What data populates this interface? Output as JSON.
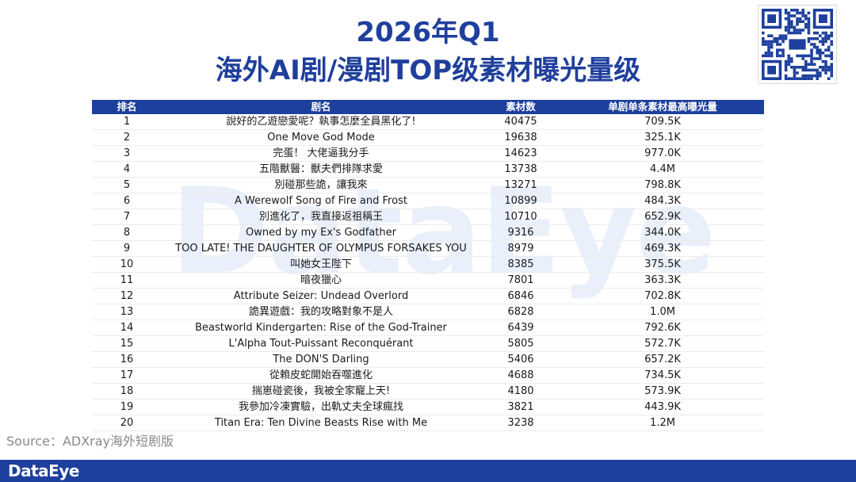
{
  "watermark_text": "DataEye",
  "title_line1": "2026年Q1",
  "title_line2": "海外AI剧/漫剧TOP级素材曝光量级",
  "table": {
    "headers": [
      "排名",
      "剧名",
      "素材数",
      "单剧单条素材最高曝光量"
    ],
    "rows": [
      [
        "1",
        "說好的乙遊戀愛呢？執事怎麼全員黑化了!",
        "40475",
        "709.5K"
      ],
      [
        "2",
        "One Move God Mode",
        "19638",
        "325.1K"
      ],
      [
        "3",
        "完蛋！ 大佬逼我分手",
        "14623",
        "977.0K"
      ],
      [
        "4",
        "五階獸醫：獸夫們排隊求愛",
        "13738",
        "4.4M"
      ],
      [
        "5",
        "別碰那些詭，讓我來",
        "13271",
        "798.8K"
      ],
      [
        "6",
        "A Werewolf Song of Fire and Frost",
        "10899",
        "484.3K"
      ],
      [
        "7",
        "別進化了，我直接返祖稱王",
        "10710",
        "652.9K"
      ],
      [
        "8",
        "Owned by my Ex's Godfather",
        "9316",
        "344.0K"
      ],
      [
        "9",
        "TOO LATE! THE DAUGHTER OF OLYMPUS FORSAKES YOU",
        "8979",
        "469.3K"
      ],
      [
        "10",
        "叫她女王陛下",
        "8385",
        "375.5K"
      ],
      [
        "11",
        "暗夜獵心",
        "7801",
        "363.3K"
      ],
      [
        "12",
        "Attribute Seizer: Undead Overlord",
        "6846",
        "702.8K"
      ],
      [
        "13",
        "詭異遊戲：我的攻略對象不是人",
        "6828",
        "1.0M"
      ],
      [
        "14",
        "Beastworld Kindergarten: Rise of the God-Trainer",
        "6439",
        "792.6K"
      ],
      [
        "15",
        "L'Alpha Tout-Puissant Reconquérant",
        "5805",
        "572.7K"
      ],
      [
        "16",
        "The DON'S Darling",
        "5406",
        "657.2K"
      ],
      [
        "17",
        "從賴皮蛇開始吞噬進化",
        "4688",
        "734.5K"
      ],
      [
        "18",
        "揣崽碰瓷後，我被全家寵上天!",
        "4180",
        "573.9K"
      ],
      [
        "19",
        "我參加冷凍實驗，出軌丈夫全球瘋找",
        "3821",
        "443.9K"
      ],
      [
        "20",
        "Titan Era: Ten Divine Beasts Rise with Me",
        "3238",
        "1.2M"
      ]
    ]
  },
  "source_text": "Source：ADXray海外短剧版",
  "footer_logo": "DataEye",
  "colors": {
    "brand_blue": "#1d3f9d",
    "title_blue": "#1f3f9c",
    "watermark": "#e9f0fb",
    "source_gray": "#8a8a8a"
  },
  "icons": [
    "qr-code-icon"
  ]
}
